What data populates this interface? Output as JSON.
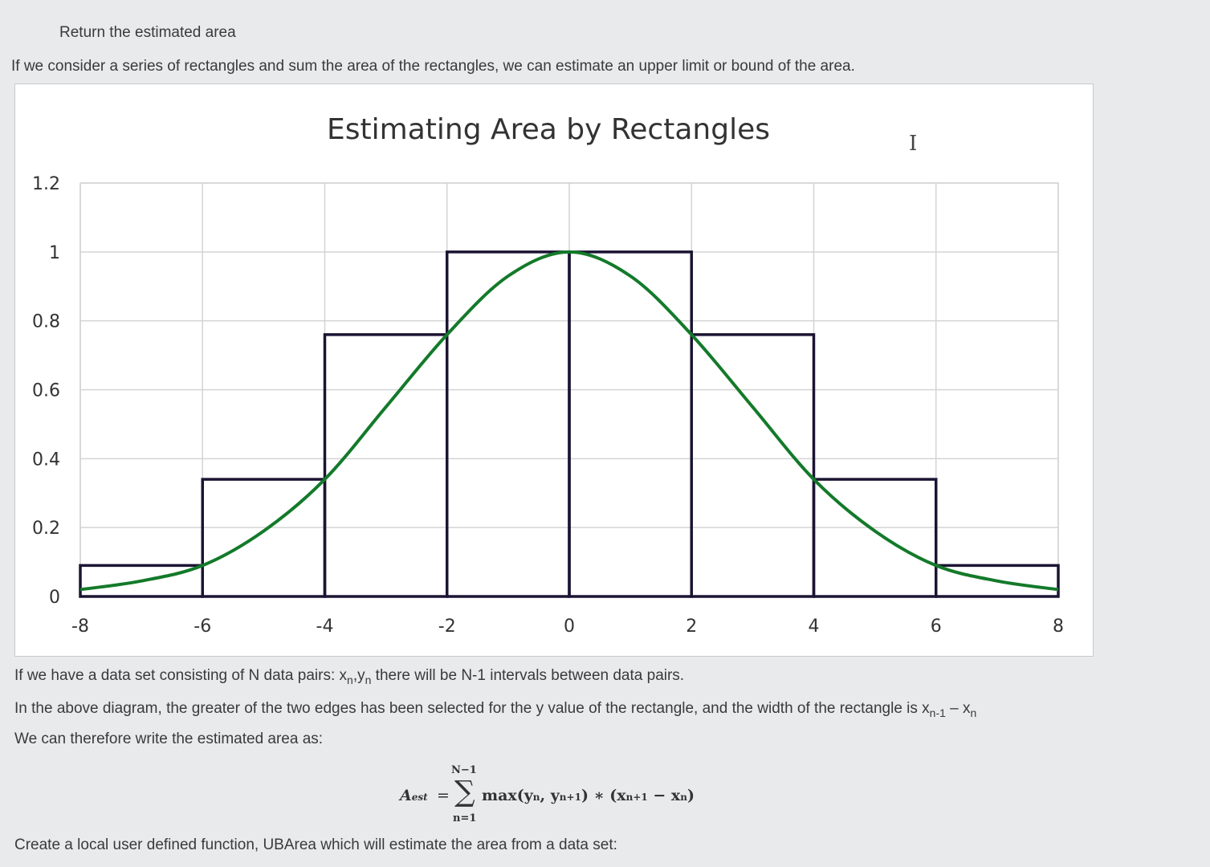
{
  "heading": "Return the estimated area",
  "intro": "If we consider a series of rectangles and sum the area of the rectangles, we can estimate an upper limit or bound of the area.",
  "chart_data": {
    "type": "bar",
    "title": "Estimating Area by Rectangles",
    "xlabel": "",
    "ylabel": "",
    "xlim": [
      -8,
      8
    ],
    "ylim": [
      0,
      1.2
    ],
    "xticks": [
      "-8",
      "-6",
      "-4",
      "-2",
      "0",
      "2",
      "4",
      "6",
      "8"
    ],
    "yticks": [
      "0",
      "0.2",
      "0.4",
      "0.6",
      "0.8",
      "1",
      "1.2"
    ],
    "grid": true,
    "rectangles": [
      {
        "x0": -8,
        "x1": -6,
        "height": 0.09
      },
      {
        "x0": -6,
        "x1": -4,
        "height": 0.34
      },
      {
        "x0": -4,
        "x1": -2,
        "height": 0.76
      },
      {
        "x0": -2,
        "x1": 0,
        "height": 1.0
      },
      {
        "x0": 0,
        "x1": 2,
        "height": 1.0
      },
      {
        "x0": 2,
        "x1": 4,
        "height": 0.76
      },
      {
        "x0": 4,
        "x1": 6,
        "height": 0.34
      },
      {
        "x0": 6,
        "x1": 8,
        "height": 0.09
      }
    ],
    "curve": {
      "x": [
        -8,
        -7,
        -6,
        -5,
        -4,
        -3,
        -2,
        -1,
        0,
        1,
        2,
        3,
        4,
        5,
        6,
        7,
        8
      ],
      "y": [
        0.02,
        0.045,
        0.09,
        0.19,
        0.34,
        0.55,
        0.76,
        0.93,
        1.0,
        0.93,
        0.76,
        0.55,
        0.34,
        0.19,
        0.09,
        0.045,
        0.02
      ]
    },
    "colors": {
      "rect": "#1c1433",
      "curve": "#137a2a",
      "grid": "#d4d4d4"
    }
  },
  "paragraphs": {
    "p1_pre": "If we have a data set consisting of N data pairs: x",
    "p1_sub1": "n",
    "p1_mid": ",y",
    "p1_sub2": "n",
    "p1_post": " there will be N-1 intervals between data pairs.",
    "p2_pre": "In the above diagram, the greater of the two edges has been selected for the y value of the rectangle, and the width of the rectangle is x",
    "p2_sub1": "n-1",
    "p2_mid": " – x",
    "p2_sub2": "n",
    "p3": "We can therefore write the estimated area as:",
    "p4": "Create a local user defined function, UBArea which will estimate the area from a data set:"
  },
  "formula": {
    "upper": "N−1",
    "lhs": "A",
    "lhs_sub": "est",
    "equals": "=",
    "sigma": "∑",
    "body": "max(y",
    "body_sub1": "n",
    "body_mid": ", y",
    "body_sub2": "n+1",
    "body_mid2": ") ∗ (x",
    "body_sub3": "n+1",
    "body_mid3": " − x",
    "body_sub4": "n",
    "body_end": ")",
    "lower": "n=1"
  },
  "icons": {
    "cursor": "text-cursor-icon"
  }
}
